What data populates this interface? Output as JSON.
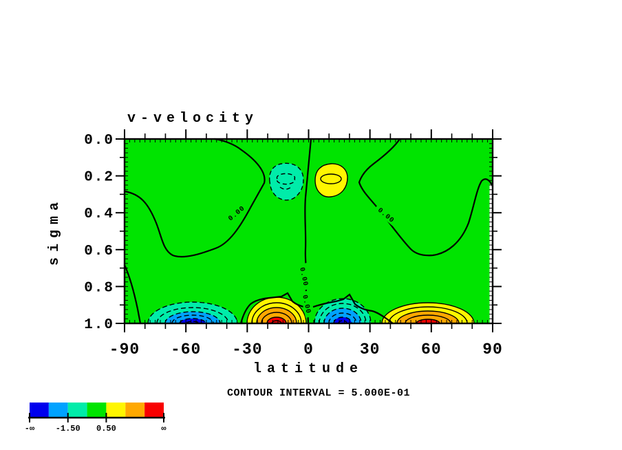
{
  "figure": {
    "title": "v-velocity",
    "x_axis": {
      "label": "latitude",
      "tick_labels": [
        "-90",
        "-60",
        "-30",
        "0",
        "30",
        "60",
        "90"
      ]
    },
    "y_axis": {
      "label": "sigma",
      "tick_labels": [
        "0.0",
        "0.2",
        "0.4",
        "0.6",
        "0.8",
        "1.0"
      ]
    },
    "annotations": {
      "contour_interval": "CONTOUR INTERVAL = 5.000E-01",
      "zero_contour_label": "0.00"
    },
    "colorbar": {
      "colors": [
        "#0000ee",
        "#00a2ff",
        "#00eca9",
        "#00e400",
        "#fff600",
        "#ffa800",
        "#f80000"
      ],
      "tick_labels": [
        {
          "text": "-∞",
          "pos": 0
        },
        {
          "text": "-1.50",
          "pos": 0.2857
        },
        {
          "text": "0.50",
          "pos": 0.5714
        },
        {
          "text": "∞",
          "pos": 1
        }
      ]
    },
    "palette": {
      "background_fill": "#00e400",
      "negative_1": "#00eca9",
      "negative_2": "#00a2ff",
      "negative_3": "#0000ee",
      "positive_1": "#fff600",
      "positive_2": "#ffa800",
      "positive_3": "#f80000",
      "contour_line": "#000000"
    }
  },
  "chart_data": {
    "type": "contour",
    "title": "v-velocity",
    "xlabel": "latitude",
    "ylabel": "sigma",
    "x_range": [
      -90,
      90
    ],
    "y_range": [
      0.0,
      1.0
    ],
    "y_axis_inverted": true,
    "x_major_ticks": [
      -90,
      -60,
      -30,
      0,
      30,
      60,
      90
    ],
    "y_major_ticks": [
      0.0,
      0.2,
      0.4,
      0.6,
      0.8,
      1.0
    ],
    "contour_interval": 0.5,
    "labeled_contour_value": 0.0,
    "zero_contour_labels_count": 4,
    "fill_boundaries": [
      -2.5,
      -1.5,
      -0.5,
      0.5,
      1.5,
      2.5
    ],
    "fill_colors": [
      "#0000ee",
      "#00a2ff",
      "#00eca9",
      "#00e400",
      "#fff600",
      "#ffa800",
      "#f80000"
    ],
    "background_band_value_range": [
      -0.5,
      0.5
    ],
    "features": [
      {
        "name": "mid-level negative cell",
        "lat_center": -12,
        "sigma_center": 0.24,
        "approx_extreme": -1.2,
        "contour_style": "dashed"
      },
      {
        "name": "mid-level positive cell",
        "lat_center": 10,
        "sigma_center": 0.23,
        "approx_extreme": 1.2,
        "contour_style": "solid"
      },
      {
        "name": "near-surface negative cell south",
        "lat_center": -57,
        "sigma_center": 1.0,
        "approx_extreme": -3.0,
        "contour_style": "dashed"
      },
      {
        "name": "near-surface positive cell south",
        "lat_center": -14,
        "sigma_center": 1.0,
        "approx_extreme": 3.2,
        "contour_style": "solid"
      },
      {
        "name": "near-surface negative cell north",
        "lat_center": 12,
        "sigma_center": 1.0,
        "approx_extreme": -3.2,
        "contour_style": "dashed"
      },
      {
        "name": "near-surface positive cell north",
        "lat_center": 57,
        "sigma_center": 1.0,
        "approx_extreme": 3.0,
        "contour_style": "solid"
      }
    ]
  }
}
